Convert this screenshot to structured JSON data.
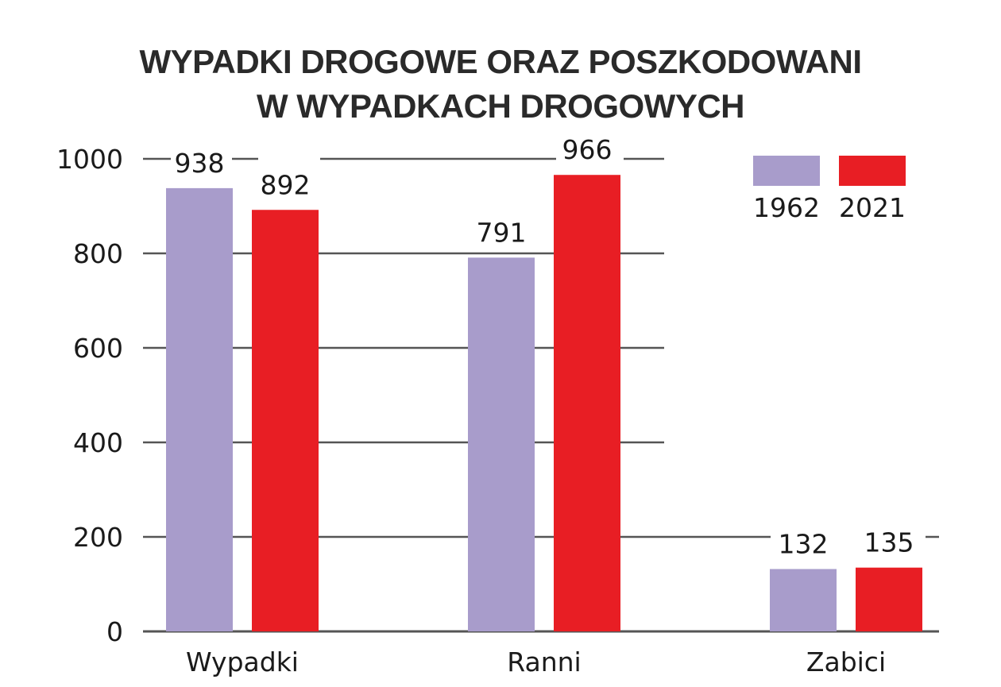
{
  "chart_data": {
    "type": "bar",
    "title_lines": [
      "WYPADKI DROGOWE ORAZ POSZKODOWANI",
      "W WYPADKACH DROGOWYCH"
    ],
    "categories": [
      "Wypadki",
      "Ranni",
      "Zabici"
    ],
    "series": [
      {
        "name": "1962",
        "values": [
          938,
          791,
          132
        ],
        "color": "#a89ccb"
      },
      {
        "name": "2021",
        "values": [
          892,
          966,
          135
        ],
        "color": "#e81e24"
      }
    ],
    "yticks": [
      "0",
      "200",
      "400",
      "600",
      "800",
      "1000"
    ],
    "ylim": [
      0,
      1000
    ],
    "grid": true,
    "legend_position": "top-right"
  }
}
